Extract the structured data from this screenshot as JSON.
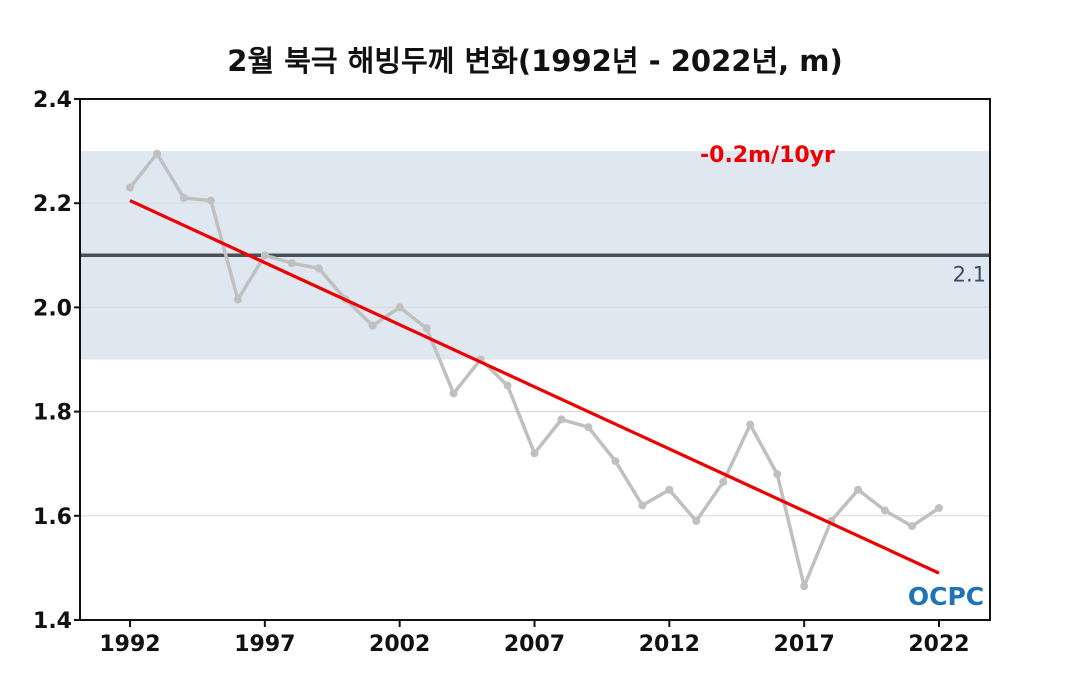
{
  "chart_data": {
    "type": "line",
    "title": "2월 북극 해빙두께 변화(1992년 - 2022년, m)",
    "xlabel": "",
    "ylabel": "",
    "xlim": [
      1992,
      2022
    ],
    "ylim": [
      1.4,
      2.4
    ],
    "x_ticks": [
      1992,
      1997,
      2002,
      2007,
      2012,
      2017,
      2022
    ],
    "y_ticks": [
      1.4,
      1.6,
      1.8,
      2.0,
      2.2,
      2.4
    ],
    "y_tick_labels": [
      "1.4",
      "1.6",
      "1.8",
      "2.0",
      "2.2",
      "2.4"
    ],
    "x_tick_labels": [
      "1992",
      "1997",
      "2002",
      "2007",
      "2012",
      "2017",
      "2022"
    ],
    "grid": "horizontal",
    "series": [
      {
        "x": [
          1992,
          1993,
          1994,
          1995,
          1996,
          1997,
          1998,
          1999,
          2000,
          2001,
          2002,
          2003,
          2004,
          2005,
          2006,
          2007,
          2008,
          2009,
          2010,
          2011,
          2012,
          2013,
          2014,
          2015,
          2016,
          2017,
          2018,
          2019,
          2020,
          2021,
          2022
        ],
        "values": [
          2.23,
          2.295,
          2.21,
          2.205,
          2.015,
          2.1,
          2.085,
          2.075,
          2.015,
          1.965,
          2.0,
          1.96,
          1.835,
          1.9,
          1.85,
          1.72,
          1.785,
          1.77,
          1.705,
          1.62,
          1.65,
          1.59,
          1.665,
          1.775,
          1.68,
          1.465,
          1.59,
          1.65,
          1.61,
          1.58,
          1.615
        ],
        "color": "#c0c0c0"
      }
    ],
    "trend_line": {
      "x": [
        1992,
        2022
      ],
      "values": [
        2.205,
        1.49
      ],
      "color": "#ee0000",
      "label": "-0.2m/10yr"
    },
    "reference_line": {
      "value": 2.1,
      "label": "2.1",
      "color": "#4a5058"
    },
    "shaded_band": {
      "range": [
        1.9,
        2.3
      ],
      "color": "#dfe7f0"
    },
    "logo_text": "OCPC"
  }
}
